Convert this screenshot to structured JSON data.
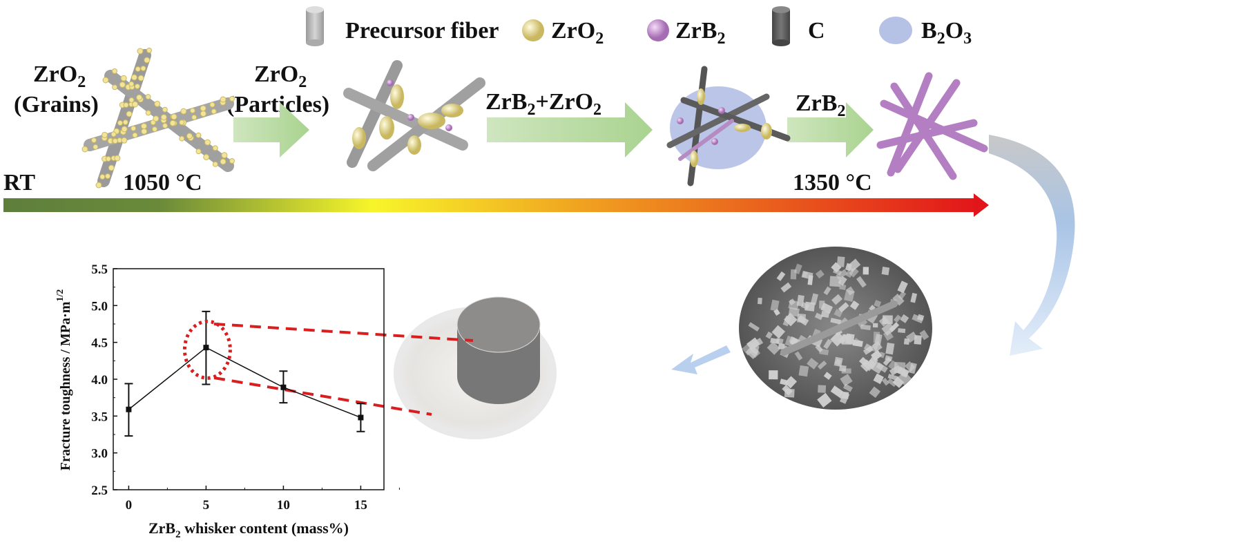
{
  "legend": [
    {
      "icon": "gray-cylinder",
      "label": "Precursor fiber",
      "color": "#b5b5b5"
    },
    {
      "icon": "yellow-sphere",
      "label": "ZrO",
      "sub": "2",
      "color": "#e8dc8c"
    },
    {
      "icon": "purple-sphere",
      "label": "ZrB",
      "sub": "2",
      "color": "#c58bd0"
    },
    {
      "icon": "dark-cylinder",
      "label": "C",
      "color": "#555555"
    },
    {
      "icon": "blue-blob",
      "label": "B",
      "sub": "2",
      "label2": "O",
      "sub2": "3",
      "color": "#a9b6e2"
    }
  ],
  "process": {
    "stage1": {
      "line1": "ZrO",
      "sub1": "2",
      "line2": "(Grains)"
    },
    "stage2": {
      "line1": "ZrO",
      "sub1": "2",
      "line2": "(Particles)"
    },
    "stage3": {
      "a": "ZrB",
      "asub": "2",
      "b": "+ZrO",
      "bsub": "2"
    },
    "stage4": {
      "a": "ZrB",
      "asub": "2"
    },
    "temp_start": "RT",
    "temp_1": "1050 °C",
    "temp_2": "1350 °C",
    "gradient_colors": [
      "#5e7f3c",
      "#6a8a3a",
      "#f7ef2a",
      "#f5a623",
      "#e2161a"
    ]
  },
  "chart_data": {
    "type": "line",
    "xlabel": "ZrB",
    "xlabel_sub": "2",
    "xlabel_rest": " whisker content (mass%)",
    "ylabel": "Fracture toughness / MPa·m",
    "ylabel_sup": "1/2",
    "x": [
      0,
      5,
      10,
      15
    ],
    "y": [
      3.59,
      4.43,
      3.89,
      3.48
    ],
    "error_low": [
      3.23,
      3.93,
      3.68,
      3.29
    ],
    "error_high": [
      3.94,
      4.92,
      4.11,
      3.67
    ],
    "xlim": [
      -1,
      16.5
    ],
    "ylim": [
      2.5,
      5.5
    ],
    "xticks": [
      "0",
      "5",
      "10",
      "15"
    ],
    "yticks": [
      "2.5",
      "3.0",
      "3.5",
      "4.0",
      "4.5",
      "5.0",
      "5.5"
    ],
    "highlight_color": "#d81e1e",
    "grid": false
  }
}
